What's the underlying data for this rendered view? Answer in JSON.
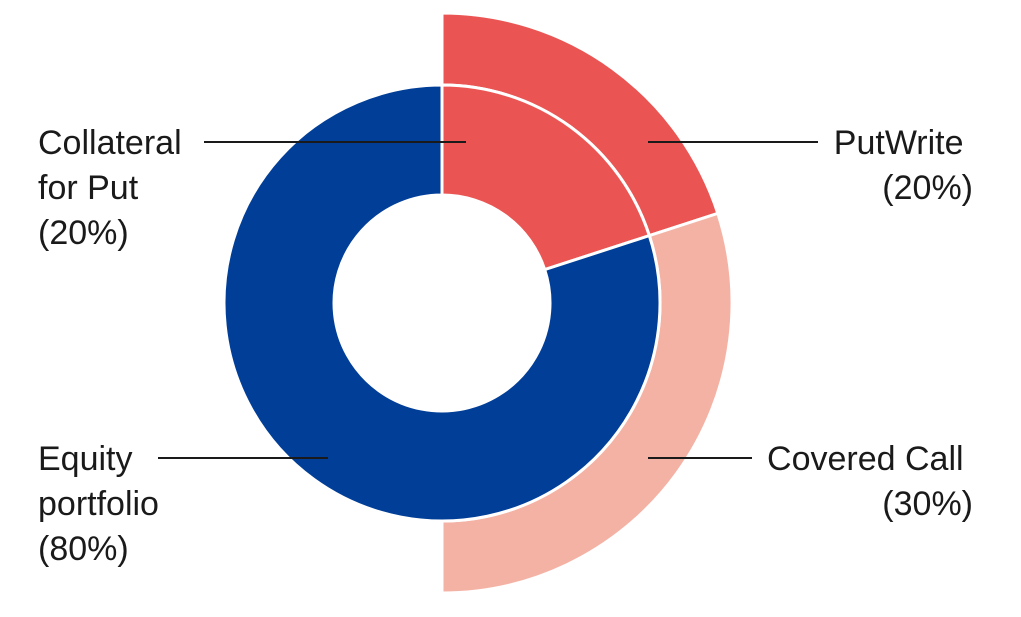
{
  "chart_data": {
    "type": "pie",
    "variant": "nested-donut",
    "inner_ring": {
      "slices": [
        {
          "key": "collateral",
          "lines": [
            "Collateral",
            "for Put",
            "(20%)"
          ],
          "value": 20,
          "color": "#ea5553"
        },
        {
          "key": "equity",
          "lines": [
            "Equity",
            "portfolio",
            "(80%)"
          ],
          "value": 80,
          "color": "#003e98"
        }
      ]
    },
    "outer_ring": {
      "slices": [
        {
          "key": "putwrite",
          "lines": [
            "PutWrite",
            "(20%)"
          ],
          "value": 20,
          "color": "#ea5553"
        },
        {
          "key": "covered-call",
          "lines": [
            "Covered Call",
            "(30%)"
          ],
          "value": 30,
          "color": "#f4b2a5"
        }
      ]
    }
  }
}
